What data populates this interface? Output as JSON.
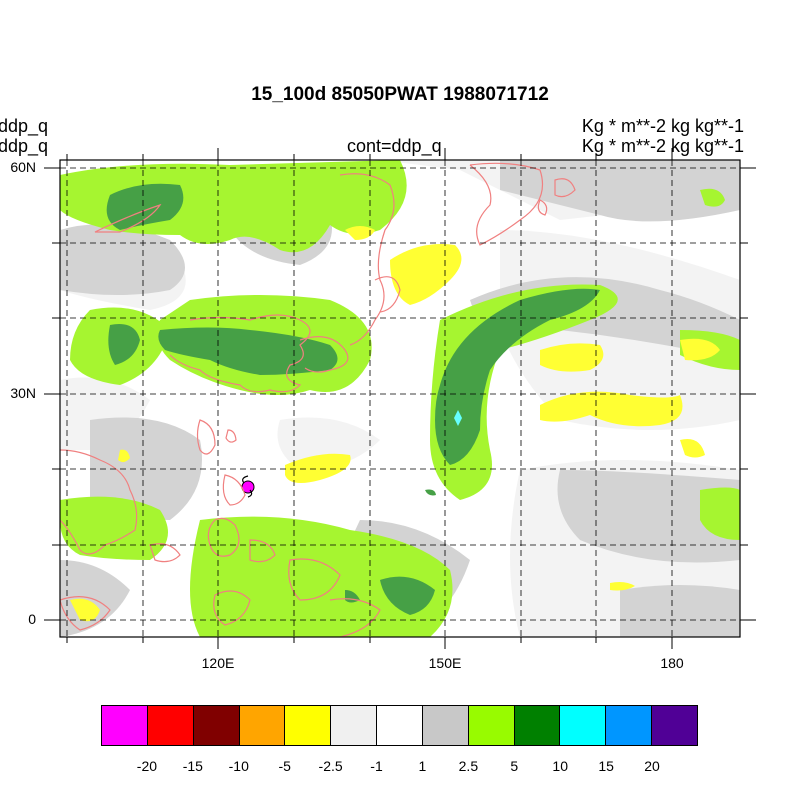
{
  "title": "15_100d 85050PWAT  1988071712",
  "left_labels": [
    "ddp_q",
    "ddp_q"
  ],
  "center_label": "cont=ddp_q",
  "right_labels": [
    "Kg  * m**-2 kg kg**-1",
    "Kg  * m**-2 kg kg**-1"
  ],
  "map": {
    "lat_labels": [
      "60N",
      "30N",
      "0"
    ],
    "lon_labels": [
      "120E",
      "150E",
      "180"
    ],
    "lat_range": [
      -2,
      61
    ],
    "lon_range": [
      96,
      186
    ],
    "coastline_color": "#f08080",
    "grid": "dashed"
  },
  "colorbar": {
    "colors": [
      "#ff00ff",
      "#ff0000",
      "#800000",
      "#ffa500",
      "#ffff00",
      "#f0f0f0",
      "#ffffff",
      "#c8c8c8",
      "#98fb00",
      "#008000",
      "#00ffff",
      "#0096ff",
      "#500096"
    ],
    "labels": [
      "-20",
      "-15",
      "-10",
      "-5",
      "-2.5",
      "-1",
      "1",
      "2.5",
      "5",
      "10",
      "15",
      "20"
    ]
  },
  "fills": {
    "light_gray": "#f3f3f3",
    "gray": "#d3d3d3",
    "light_green": "#a6f530",
    "dark_green": "#46a046",
    "yellow": "#ffff33",
    "cyan": "#66ffff",
    "magenta": "#ff00ff"
  }
}
